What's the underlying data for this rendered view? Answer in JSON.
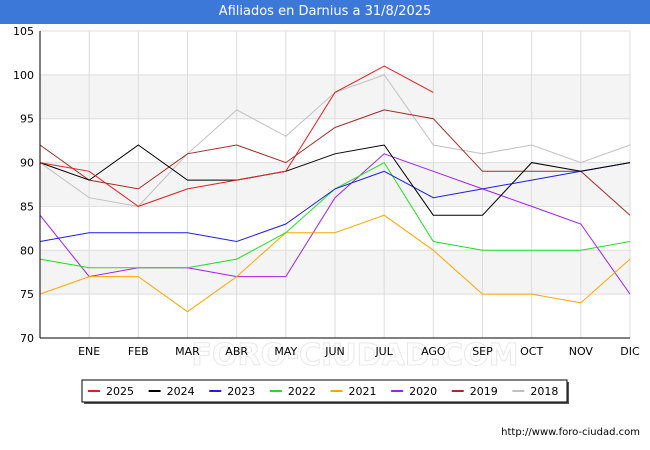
{
  "header": {
    "title": "Afiliados en Darnius a 31/8/2025"
  },
  "watermark": "FORO-CIUDAD.COM",
  "footer": {
    "url": "http://www.foro-ciudad.com"
  },
  "colors": {
    "title_bg": "#3c78d8",
    "plot_band": "#f4f4f4",
    "grid": "#dddddd"
  },
  "chart_data": {
    "type": "line",
    "title": "Afiliados en Darnius a 31/8/2025",
    "xlabel": "",
    "ylabel": "",
    "categories": [
      "",
      "ENE",
      "FEB",
      "MAR",
      "ABR",
      "MAY",
      "JUN",
      "JUL",
      "AGO",
      "SEP",
      "OCT",
      "NOV",
      "DIC"
    ],
    "ylim": [
      70,
      105
    ],
    "yticks": [
      70,
      75,
      80,
      85,
      90,
      95,
      100,
      105
    ],
    "grid": true,
    "legend_position": "bottom",
    "series": [
      {
        "name": "2025",
        "color": "#dd2222",
        "values": [
          90,
          89,
          85,
          87,
          88,
          89,
          98,
          101,
          98,
          null,
          null,
          null,
          null
        ]
      },
      {
        "name": "2024",
        "color": "#000000",
        "values": [
          90,
          88,
          92,
          88,
          88,
          89,
          91,
          92,
          84,
          84,
          90,
          89,
          90
        ]
      },
      {
        "name": "2023",
        "color": "#1f1fdd",
        "values": [
          81,
          82,
          82,
          82,
          81,
          83,
          87,
          89,
          86,
          87,
          88,
          89,
          90
        ]
      },
      {
        "name": "2022",
        "color": "#22dd22",
        "values": [
          79,
          78,
          78,
          78,
          79,
          82,
          87,
          90,
          81,
          80,
          80,
          80,
          81
        ]
      },
      {
        "name": "2021",
        "color": "#ffa500",
        "values": [
          75,
          77,
          77,
          73,
          77,
          82,
          82,
          84,
          80,
          75,
          75,
          74,
          79
        ]
      },
      {
        "name": "2020",
        "color": "#a020f0",
        "values": [
          84,
          77,
          78,
          78,
          77,
          77,
          86,
          91,
          89,
          87,
          85,
          83,
          75
        ]
      },
      {
        "name": "2019",
        "color": "#a52a2a",
        "values": [
          92,
          88,
          87,
          91,
          92,
          90,
          94,
          96,
          95,
          89,
          89,
          89,
          84
        ]
      },
      {
        "name": "2018",
        "color": "#c0c0c0",
        "values": [
          90,
          86,
          85,
          91,
          96,
          93,
          98,
          100,
          92,
          91,
          92,
          90,
          92
        ]
      }
    ]
  }
}
